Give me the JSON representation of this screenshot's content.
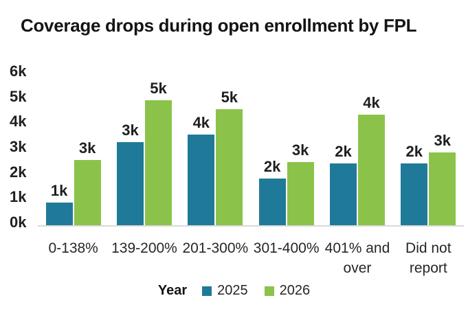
{
  "chart_data": {
    "type": "bar",
    "title": "Coverage drops during open enrollment by FPL",
    "categories": [
      "0-138%",
      "139-200%",
      "201-300%",
      "301-400%",
      "401% and over",
      "Did not report"
    ],
    "series": [
      {
        "name": "2025",
        "color": "#1f7a99",
        "values": [
          900,
          3300,
          3600,
          1850,
          2450,
          2450
        ],
        "value_labels": [
          "1k",
          "3k",
          "4k",
          "2k",
          "2k",
          "2k"
        ]
      },
      {
        "name": "2026",
        "color": "#8bc34a",
        "values": [
          2600,
          4950,
          4600,
          2500,
          4400,
          2900
        ],
        "value_labels": [
          "3k",
          "5k",
          "5k",
          "3k",
          "4k",
          "3k"
        ]
      }
    ],
    "y_ticks": [
      "0k",
      "1k",
      "2k",
      "3k",
      "4k",
      "5k",
      "6k"
    ],
    "ylim": [
      0,
      6000
    ],
    "xlabel": "",
    "ylabel": "",
    "legend_title": "Year",
    "legend_position": "bottom",
    "grid": false,
    "axis_line_color": "#d9d9d9",
    "background_color": "#ffffff",
    "text_color": "#1f1f1f"
  }
}
